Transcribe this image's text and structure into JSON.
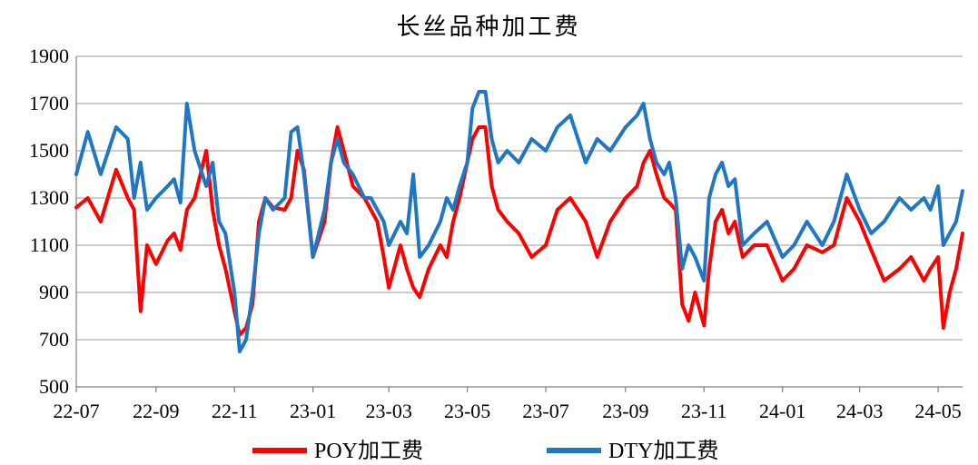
{
  "chart_data": {
    "type": "line",
    "title": "长丝品种加工费",
    "xlabel": "",
    "ylabel": "",
    "ylim": [
      500,
      1900
    ],
    "yticks": [
      500,
      700,
      900,
      1100,
      1300,
      1500,
      1700,
      1900
    ],
    "x_tick_labels": [
      "22-07",
      "22-09",
      "22-11",
      "23-01",
      "23-03",
      "23-05",
      "23-07",
      "23-09",
      "23-11",
      "24-01",
      "24-03",
      "24-05"
    ],
    "x_range": [
      "2022-07-01",
      "2024-05-20"
    ],
    "grid": "horizontal",
    "legend_position": "bottom",
    "series": [
      {
        "name": "POY加工费",
        "color": "#ff0000",
        "x": [
          "2022-07-01",
          "2022-07-10",
          "2022-07-20",
          "2022-08-01",
          "2022-08-10",
          "2022-08-15",
          "2022-08-20",
          "2022-08-25",
          "2022-09-01",
          "2022-09-10",
          "2022-09-15",
          "2022-09-20",
          "2022-09-25",
          "2022-10-01",
          "2022-10-10",
          "2022-10-15",
          "2022-10-20",
          "2022-10-25",
          "2022-11-01",
          "2022-11-05",
          "2022-11-10",
          "2022-11-15",
          "2022-11-20",
          "2022-11-25",
          "2022-12-01",
          "2022-12-10",
          "2022-12-15",
          "2022-12-20",
          "2022-12-25",
          "2023-01-01",
          "2023-01-10",
          "2023-01-15",
          "2023-01-20",
          "2023-01-25",
          "2023-02-01",
          "2023-02-10",
          "2023-02-15",
          "2023-02-20",
          "2023-02-25",
          "2023-03-01",
          "2023-03-10",
          "2023-03-15",
          "2023-03-20",
          "2023-03-25",
          "2023-04-01",
          "2023-04-10",
          "2023-04-15",
          "2023-04-20",
          "2023-04-25",
          "2023-05-01",
          "2023-05-05",
          "2023-05-10",
          "2023-05-15",
          "2023-05-20",
          "2023-05-25",
          "2023-06-01",
          "2023-06-10",
          "2023-06-20",
          "2023-07-01",
          "2023-07-10",
          "2023-07-20",
          "2023-08-01",
          "2023-08-10",
          "2023-08-20",
          "2023-09-01",
          "2023-09-10",
          "2023-09-15",
          "2023-09-20",
          "2023-09-25",
          "2023-10-01",
          "2023-10-05",
          "2023-10-10",
          "2023-10-15",
          "2023-10-20",
          "2023-10-25",
          "2023-11-01",
          "2023-11-05",
          "2023-11-10",
          "2023-11-15",
          "2023-11-20",
          "2023-11-25",
          "2023-12-01",
          "2023-12-10",
          "2023-12-20",
          "2024-01-01",
          "2024-01-10",
          "2024-01-20",
          "2024-02-01",
          "2024-02-10",
          "2024-02-20",
          "2024-03-01",
          "2024-03-10",
          "2024-03-20",
          "2024-04-01",
          "2024-04-10",
          "2024-04-20",
          "2024-04-25",
          "2024-05-01",
          "2024-05-05",
          "2024-05-10",
          "2024-05-15",
          "2024-05-20"
        ],
        "values": [
          1260,
          1300,
          1200,
          1420,
          1300,
          1250,
          820,
          1100,
          1020,
          1120,
          1150,
          1080,
          1250,
          1300,
          1500,
          1250,
          1100,
          1000,
          820,
          720,
          750,
          850,
          1200,
          1300,
          1260,
          1250,
          1300,
          1500,
          1420,
          1050,
          1200,
          1450,
          1600,
          1500,
          1350,
          1300,
          1250,
          1200,
          1050,
          920,
          1100,
          1000,
          920,
          880,
          1000,
          1100,
          1050,
          1200,
          1300,
          1450,
          1550,
          1600,
          1600,
          1350,
          1250,
          1200,
          1150,
          1050,
          1100,
          1250,
          1300,
          1200,
          1050,
          1200,
          1300,
          1350,
          1450,
          1500,
          1400,
          1300,
          1280,
          1250,
          850,
          780,
          900,
          760,
          1000,
          1200,
          1250,
          1150,
          1200,
          1050,
          1100,
          1100,
          950,
          1000,
          1100,
          1070,
          1100,
          1300,
          1200,
          1080,
          950,
          1000,
          1050,
          950,
          1000,
          1050,
          750,
          900,
          1000,
          1150
        ]
      },
      {
        "name": "DTY加工费",
        "color": "#1f77c4",
        "x": [
          "2022-07-01",
          "2022-07-10",
          "2022-07-20",
          "2022-08-01",
          "2022-08-10",
          "2022-08-15",
          "2022-08-20",
          "2022-08-25",
          "2022-09-01",
          "2022-09-10",
          "2022-09-15",
          "2022-09-20",
          "2022-09-25",
          "2022-10-01",
          "2022-10-10",
          "2022-10-15",
          "2022-10-20",
          "2022-10-25",
          "2022-11-01",
          "2022-11-05",
          "2022-11-10",
          "2022-11-15",
          "2022-11-20",
          "2022-11-25",
          "2022-12-01",
          "2022-12-10",
          "2022-12-15",
          "2022-12-20",
          "2022-12-25",
          "2023-01-01",
          "2023-01-10",
          "2023-01-15",
          "2023-01-20",
          "2023-01-25",
          "2023-02-01",
          "2023-02-10",
          "2023-02-15",
          "2023-02-20",
          "2023-02-25",
          "2023-03-01",
          "2023-03-10",
          "2023-03-15",
          "2023-03-20",
          "2023-03-25",
          "2023-04-01",
          "2023-04-10",
          "2023-04-15",
          "2023-04-20",
          "2023-04-25",
          "2023-05-01",
          "2023-05-05",
          "2023-05-10",
          "2023-05-15",
          "2023-05-20",
          "2023-05-25",
          "2023-06-01",
          "2023-06-10",
          "2023-06-20",
          "2023-07-01",
          "2023-07-10",
          "2023-07-20",
          "2023-08-01",
          "2023-08-10",
          "2023-08-20",
          "2023-09-01",
          "2023-09-10",
          "2023-09-15",
          "2023-09-20",
          "2023-09-25",
          "2023-10-01",
          "2023-10-05",
          "2023-10-10",
          "2023-10-15",
          "2023-10-20",
          "2023-10-25",
          "2023-11-01",
          "2023-11-05",
          "2023-11-10",
          "2023-11-15",
          "2023-11-20",
          "2023-11-25",
          "2023-12-01",
          "2023-12-10",
          "2023-12-20",
          "2024-01-01",
          "2024-01-10",
          "2024-01-20",
          "2024-02-01",
          "2024-02-10",
          "2024-02-20",
          "2024-03-01",
          "2024-03-10",
          "2024-03-20",
          "2024-04-01",
          "2024-04-10",
          "2024-04-20",
          "2024-04-25",
          "2024-05-01",
          "2024-05-05",
          "2024-05-10",
          "2024-05-15",
          "2024-05-20"
        ],
        "values": [
          1400,
          1580,
          1400,
          1600,
          1550,
          1300,
          1450,
          1250,
          1300,
          1350,
          1380,
          1280,
          1700,
          1500,
          1350,
          1450,
          1200,
          1150,
          900,
          650,
          700,
          900,
          1150,
          1300,
          1250,
          1300,
          1580,
          1600,
          1400,
          1050,
          1250,
          1450,
          1550,
          1450,
          1400,
          1300,
          1300,
          1250,
          1200,
          1100,
          1200,
          1150,
          1400,
          1050,
          1100,
          1200,
          1300,
          1250,
          1350,
          1450,
          1680,
          1750,
          1750,
          1550,
          1450,
          1500,
          1450,
          1550,
          1500,
          1600,
          1650,
          1450,
          1550,
          1500,
          1600,
          1650,
          1700,
          1550,
          1450,
          1400,
          1450,
          1300,
          1000,
          1100,
          1050,
          950,
          1300,
          1400,
          1450,
          1350,
          1380,
          1100,
          1150,
          1200,
          1050,
          1100,
          1200,
          1100,
          1200,
          1400,
          1250,
          1150,
          1200,
          1300,
          1250,
          1300,
          1250,
          1350,
          1100,
          1150,
          1200,
          1330
        ]
      }
    ]
  }
}
